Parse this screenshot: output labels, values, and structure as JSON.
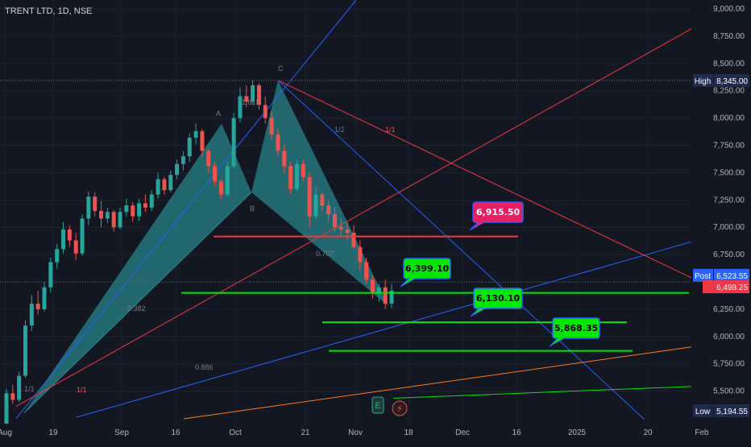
{
  "symbol": "TRENT LTD, 1D, NSE",
  "colors": {
    "background": "#131722",
    "up": "#26a69a",
    "down": "#ef5350",
    "pattern_fill": "#2a8a8f",
    "green_line": "#00e600",
    "red_line": "#f23645",
    "blue_line": "#2962ff",
    "orange_line": "#ff7a1a"
  },
  "chart_data": {
    "type": "candlestick",
    "y_ticks": [
      "9,000.00",
      "8,750.00",
      "8,500.00",
      "8,250.00",
      "8,000.00",
      "7,750.00",
      "7,500.00",
      "7,250.00",
      "7,000.00",
      "6,750.00",
      "6,500.00",
      "6,250.00",
      "6,000.00",
      "5,750.00",
      "5,500.00"
    ],
    "x_ticks": [
      "Aug",
      "19",
      "Sep",
      "16",
      "Oct",
      "21",
      "Nov",
      "18",
      "Dec",
      "16",
      "2025",
      "20",
      "Feb"
    ],
    "high": {
      "label": "High",
      "value": "8,345.00"
    },
    "low": {
      "label": "Low",
      "value": "5,194.55"
    },
    "post": {
      "label": "Post",
      "value": "6,523.55"
    },
    "last_price": "6,498.25",
    "levels": [
      {
        "label": "6,915.50",
        "value": 6915.5,
        "color": "#f23645"
      },
      {
        "label": "6,399.10",
        "value": 6399.1,
        "color": "#00e600"
      },
      {
        "label": "6,130.10",
        "value": 6130.1,
        "color": "#00e600"
      },
      {
        "label": "5,868.35",
        "value": 5868.35,
        "color": "#00e600"
      }
    ],
    "pattern_points": [
      "A",
      "B",
      "C"
    ],
    "fib_labels": [
      "1.618",
      "1/2",
      "1/1",
      "0.382",
      "0.707",
      "0.886",
      "1/1",
      "1/1"
    ],
    "candles": [
      [
        5200,
        5520,
        5180,
        5480
      ],
      [
        5480,
        5560,
        5380,
        5420
      ],
      [
        5420,
        5680,
        5400,
        5640
      ],
      [
        5640,
        6150,
        5620,
        6100
      ],
      [
        6100,
        6380,
        6050,
        6300
      ],
      [
        6300,
        6420,
        6200,
        6250
      ],
      [
        6250,
        6500,
        6230,
        6450
      ],
      [
        6450,
        6720,
        6400,
        6680
      ],
      [
        6680,
        6850,
        6620,
        6800
      ],
      [
        6800,
        7050,
        6760,
        6980
      ],
      [
        6980,
        7020,
        6820,
        6880
      ],
      [
        6880,
        6950,
        6700,
        6760
      ],
      [
        6760,
        7120,
        6740,
        7080
      ],
      [
        7080,
        7330,
        7020,
        7280
      ],
      [
        7280,
        7320,
        7100,
        7150
      ],
      [
        7150,
        7240,
        7000,
        7080
      ],
      [
        7080,
        7180,
        7040,
        7140
      ],
      [
        7140,
        7160,
        6960,
        7000
      ],
      [
        7000,
        7180,
        6980,
        7140
      ],
      [
        7140,
        7260,
        7100,
        7200
      ],
      [
        7200,
        7230,
        7050,
        7100
      ],
      [
        7100,
        7260,
        7060,
        7220
      ],
      [
        7220,
        7300,
        7140,
        7180
      ],
      [
        7180,
        7340,
        7150,
        7300
      ],
      [
        7300,
        7500,
        7260,
        7440
      ],
      [
        7440,
        7460,
        7300,
        7340
      ],
      [
        7340,
        7520,
        7320,
        7480
      ],
      [
        7480,
        7620,
        7440,
        7580
      ],
      [
        7580,
        7700,
        7520,
        7650
      ],
      [
        7650,
        7860,
        7600,
        7820
      ],
      [
        7820,
        7950,
        7760,
        7880
      ],
      [
        7880,
        7900,
        7640,
        7700
      ],
      [
        7700,
        7720,
        7500,
        7560
      ],
      [
        7560,
        7600,
        7380,
        7420
      ],
      [
        7420,
        7440,
        7260,
        7300
      ],
      [
        7300,
        7600,
        7280,
        7560
      ],
      [
        7560,
        8050,
        7540,
        8000
      ],
      [
        8000,
        8280,
        7960,
        8200
      ],
      [
        8200,
        8300,
        8100,
        8150
      ],
      [
        8150,
        8345,
        8120,
        8300
      ],
      [
        8300,
        8320,
        8080,
        8120
      ],
      [
        8120,
        8200,
        7950,
        8000
      ],
      [
        8000,
        8060,
        7800,
        7850
      ],
      [
        7850,
        7900,
        7650,
        7700
      ],
      [
        7700,
        7760,
        7500,
        7560
      ],
      [
        7560,
        7600,
        7300,
        7350
      ],
      [
        7350,
        7620,
        7330,
        7580
      ],
      [
        7580,
        7620,
        7420,
        7460
      ],
      [
        7460,
        7500,
        7000,
        7100
      ],
      [
        7100,
        7380,
        7080,
        7300
      ],
      [
        7300,
        7320,
        7150,
        7200
      ],
      [
        7200,
        7240,
        7050,
        7120
      ],
      [
        7120,
        7180,
        6960,
        7000
      ],
      [
        7000,
        7080,
        6920,
        6980
      ],
      [
        6980,
        7050,
        6880,
        6950
      ],
      [
        6950,
        7020,
        6800,
        6820
      ],
      [
        6820,
        6880,
        6600,
        6680
      ],
      [
        6680,
        6720,
        6480,
        6520
      ],
      [
        6520,
        6560,
        6350,
        6400
      ],
      [
        6400,
        6480,
        6320,
        6450
      ],
      [
        6450,
        6520,
        6250,
        6300
      ],
      [
        6300,
        6480,
        6260,
        6420
      ]
    ]
  }
}
